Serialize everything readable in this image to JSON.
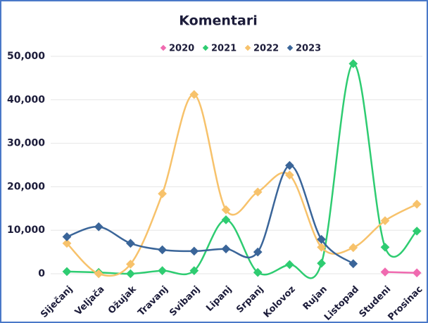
{
  "chart_data": {
    "type": "line",
    "title": "Komentari",
    "categories": [
      "Siječanj",
      "Veljača",
      "Ožujak",
      "Travanj",
      "Svibanj",
      "Lipanj",
      "Srpanj",
      "Kolovoz",
      "Rujan",
      "Listopad",
      "Studeni",
      "Prosinac"
    ],
    "series": [
      {
        "name": "2020",
        "color": "#f06ab0",
        "values": [
          null,
          null,
          null,
          null,
          null,
          null,
          null,
          null,
          null,
          null,
          400,
          200
        ]
      },
      {
        "name": "2021",
        "color": "#2ecc71",
        "values": [
          500,
          300,
          0,
          700,
          700,
          12400,
          300,
          2100,
          2400,
          48300,
          6100,
          9800
        ]
      },
      {
        "name": "2022",
        "color": "#f7c26b",
        "values": [
          7000,
          0,
          2200,
          18400,
          41200,
          14700,
          18800,
          22700,
          6100,
          6000,
          12200,
          16000
        ]
      },
      {
        "name": "2023",
        "color": "#3a6599",
        "values": [
          8500,
          10800,
          7000,
          5500,
          5200,
          5700,
          5000,
          24900,
          7900,
          2300,
          null,
          null
        ]
      }
    ],
    "ylim": [
      0,
      50000
    ],
    "yticks": [
      0,
      {
        "value": 10000,
        "label": "10,000"
      },
      {
        "value": 20000,
        "label": "20,000"
      },
      {
        "value": 30000,
        "label": "30,000"
      },
      {
        "value": 40000,
        "label": "40,000"
      },
      {
        "value": 50000,
        "label": "50,000"
      }
    ],
    "grid": true,
    "legend": "top"
  }
}
